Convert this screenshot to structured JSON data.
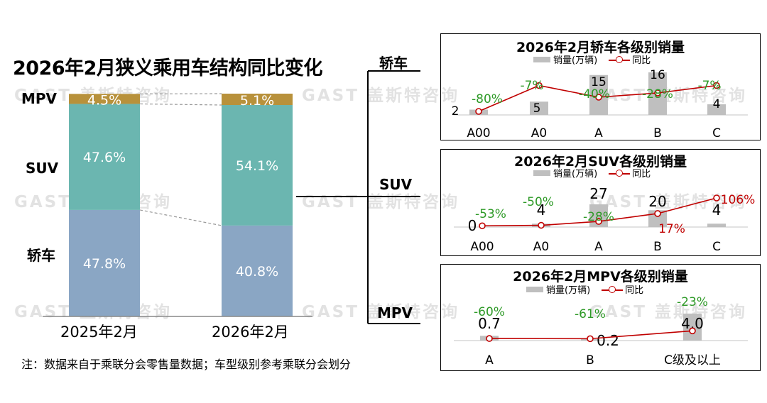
{
  "page": {
    "title": "2026年2月狭义乘用车结构同比变化",
    "watermark": "GAST 盖斯特咨询",
    "footnote": "注：数据来自于乘联分会零售量数据；车型级别参考乘联分会划分",
    "side_labels": [
      "轿车",
      "SUV",
      "MPV"
    ]
  },
  "colors": {
    "mpv": "#b8913b",
    "suv": "#6bb6b0",
    "sedan": "#8aa6c4",
    "bar_gray": "#bfbfbf",
    "line_red": "#c00000",
    "yoy_green": "#2e9a27"
  },
  "chart_data": [
    {
      "type": "bar",
      "stacked": true,
      "percent": true,
      "title": "2026年2月狭义乘用车结构同比变化",
      "categories": [
        "2025年2月",
        "2026年2月"
      ],
      "series": [
        {
          "name": "轿车",
          "values": [
            47.8,
            40.8
          ],
          "labels": [
            "47.8%",
            "40.8%"
          ]
        },
        {
          "name": "SUV",
          "values": [
            47.6,
            54.1
          ],
          "labels": [
            "47.6%",
            "54.1%"
          ]
        },
        {
          "name": "MPV",
          "values": [
            4.5,
            5.1
          ],
          "labels": [
            "4.5%",
            "5.1%"
          ]
        }
      ],
      "ylim": [
        0,
        100
      ]
    },
    {
      "type": "bar",
      "title": "2026年2月轿车各级别销量",
      "categories": [
        "A00",
        "A0",
        "A",
        "B",
        "C"
      ],
      "series": [
        {
          "name": "销量(万辆)",
          "values": [
            2,
            5,
            15,
            16,
            4
          ],
          "labels": [
            "2",
            "5",
            "15",
            "16",
            "4"
          ]
        },
        {
          "name": "同比",
          "values": [
            -80,
            -7,
            -40,
            -28,
            -7
          ],
          "labels": [
            "-80%",
            "-7%",
            "-40%",
            "-28%",
            "-7%"
          ]
        }
      ]
    },
    {
      "type": "bar",
      "title": "2026年2月SUV各级别销量",
      "categories": [
        "A00",
        "A0",
        "A",
        "B",
        "C"
      ],
      "series": [
        {
          "name": "销量(万辆)",
          "values": [
            0,
            4,
            27,
            20,
            4
          ],
          "labels": [
            "0",
            "4",
            "27",
            "20",
            "4"
          ]
        },
        {
          "name": "同比",
          "values": [
            -53,
            -50,
            -28,
            17,
            106
          ],
          "labels": [
            "-53%",
            "-50%",
            "-28%",
            "17%",
            "106%"
          ]
        }
      ]
    },
    {
      "type": "bar",
      "title": "2026年2月MPV各级别销量",
      "categories": [
        "A",
        "B",
        "C级及以上"
      ],
      "series": [
        {
          "name": "销量(万辆)",
          "values": [
            0.7,
            0.2,
            4.0
          ],
          "labels": [
            "0.7",
            "0.2",
            "4.0"
          ]
        },
        {
          "name": "同比",
          "values": [
            -60,
            -61,
            -23
          ],
          "labels": [
            "-60%",
            "-61%",
            "-23%"
          ]
        }
      ]
    }
  ]
}
